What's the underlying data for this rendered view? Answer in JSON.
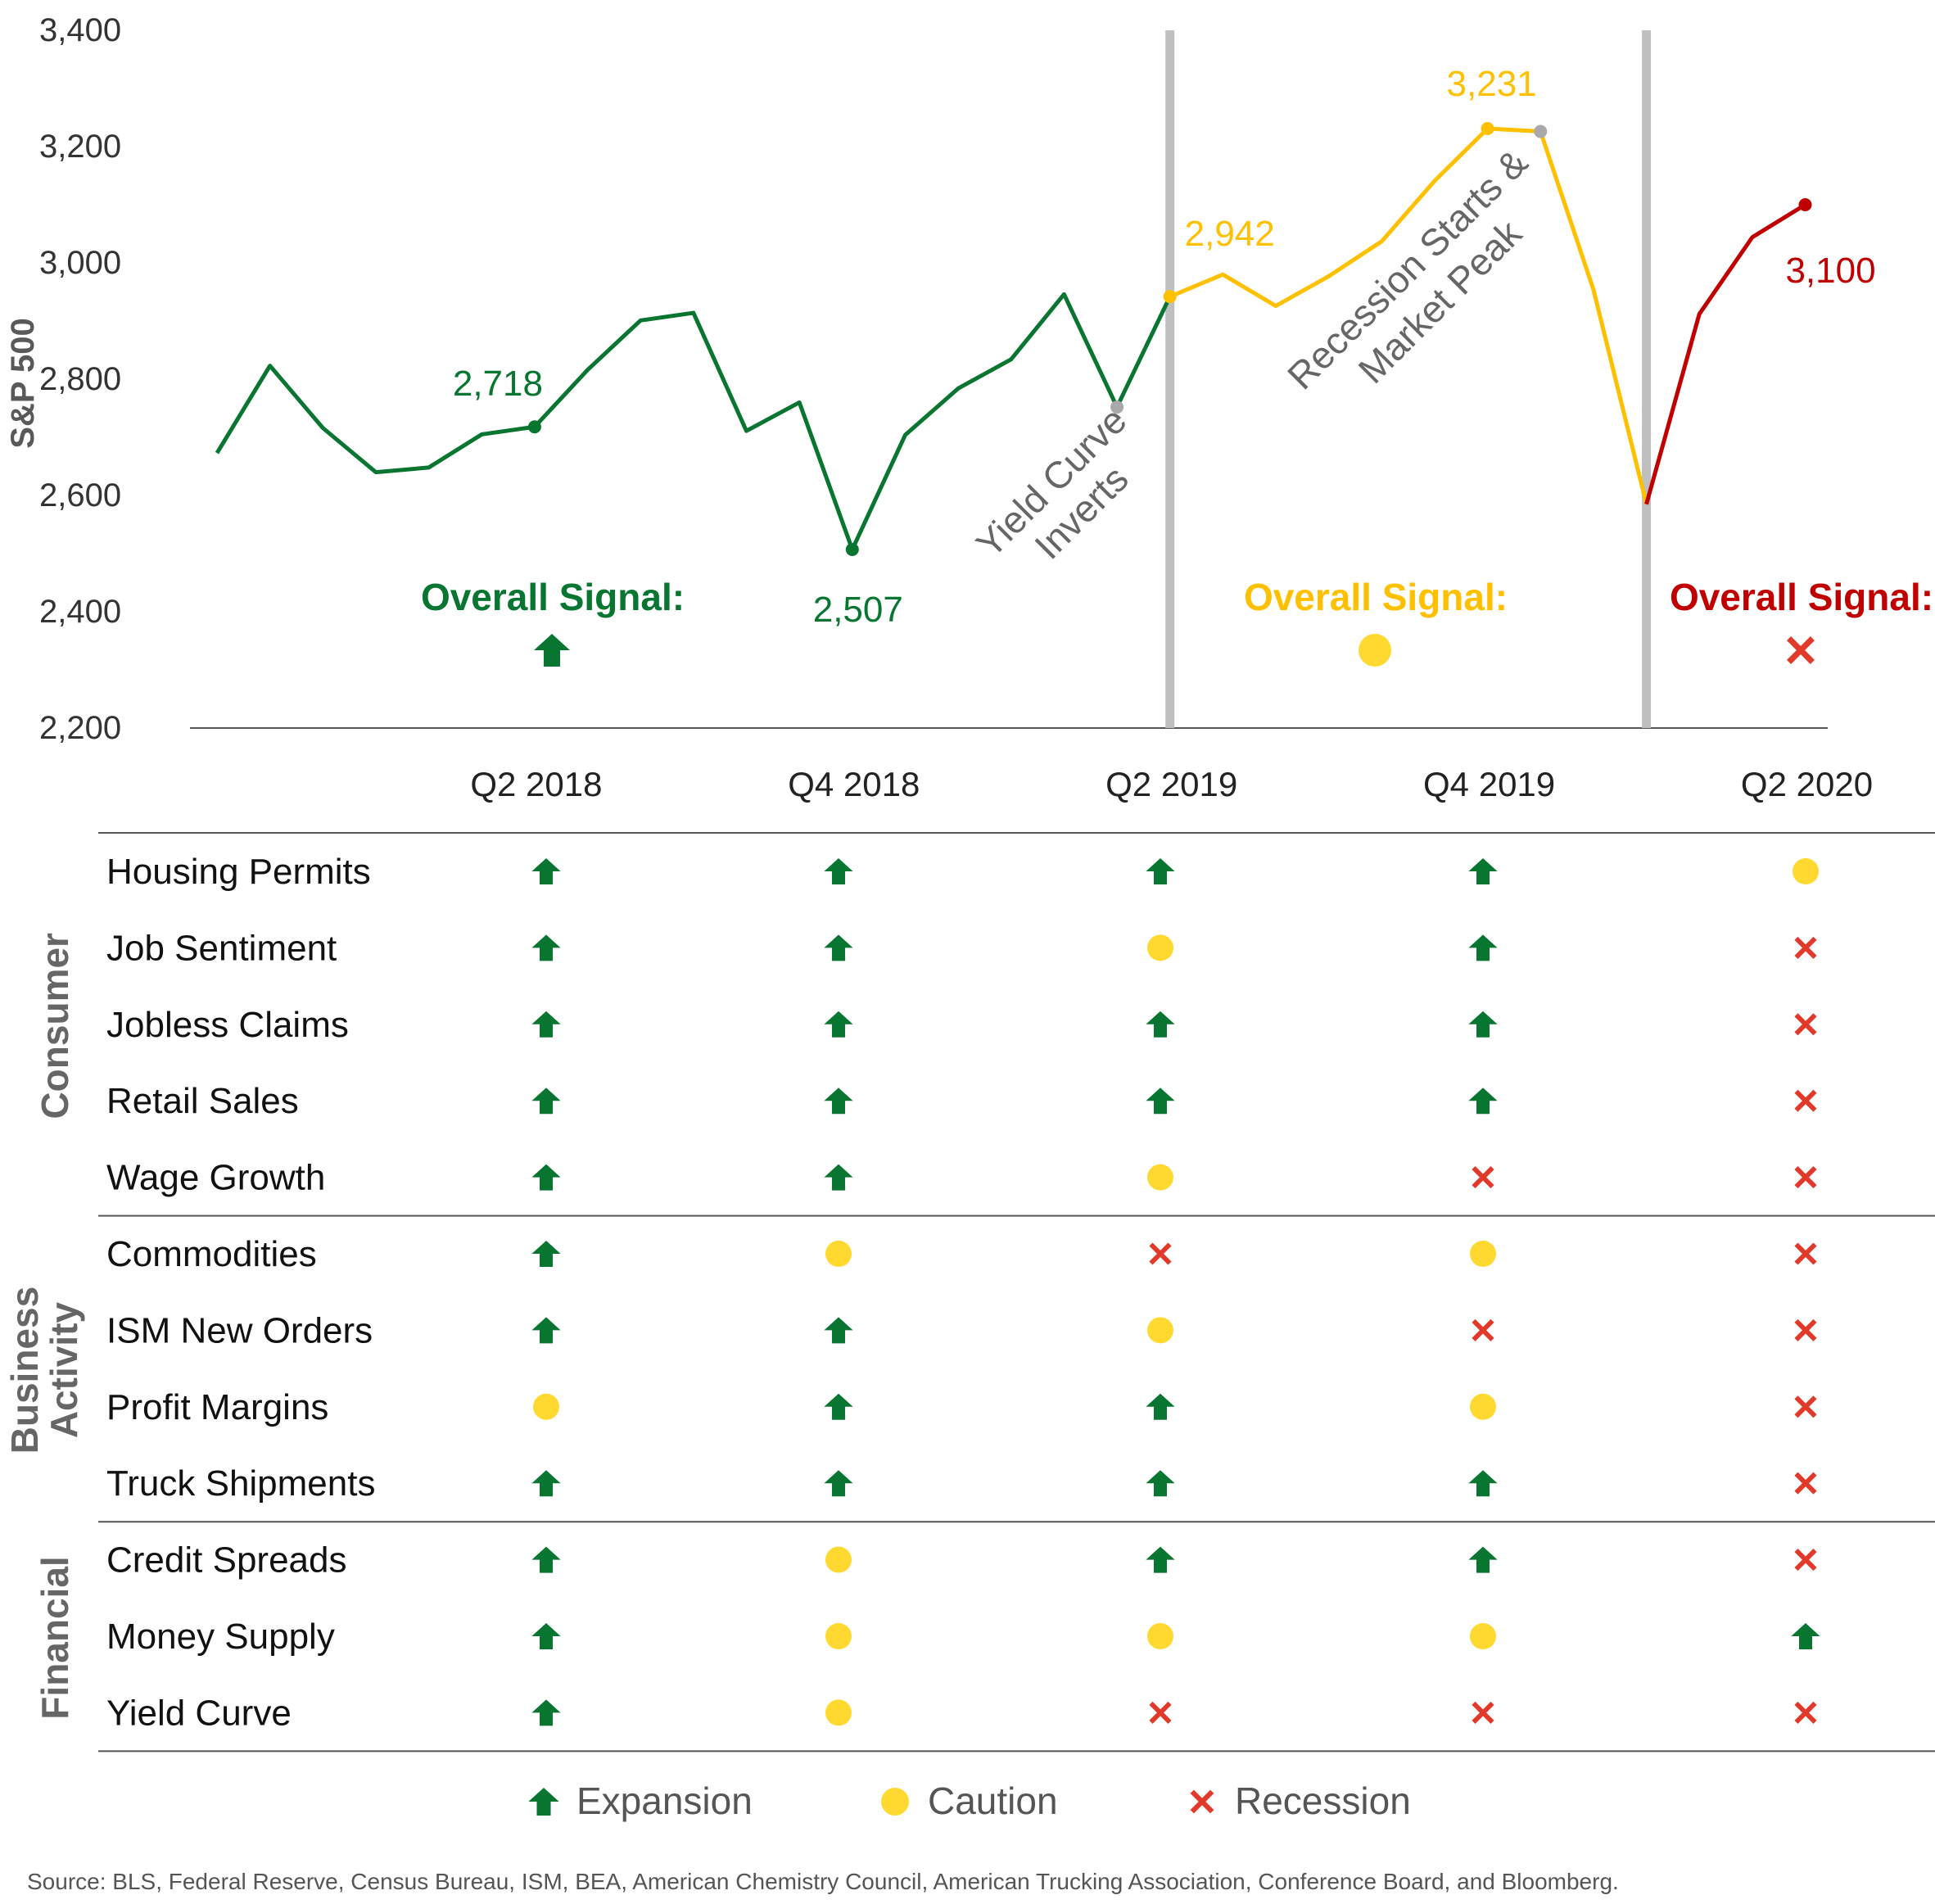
{
  "colors": {
    "expansion": "#087631",
    "caution": "#ffc000",
    "caution_fill": "#ffd92f",
    "recession": "#c00000",
    "recession_icon": "#e23a2a",
    "annotation": "#666666",
    "divider": "#bfbfbf",
    "axis_text": "#333333",
    "peak_dot": "#a9a9a9"
  },
  "chart_data": {
    "type": "line",
    "ylabel": "S&P 500",
    "ylim": [
      2200,
      3400
    ],
    "yticks": [
      "2,200",
      "2,400",
      "2,600",
      "2,800",
      "3,000",
      "3,200",
      "3,400"
    ],
    "ytick_values": [
      2200,
      2400,
      2600,
      2800,
      3000,
      3200,
      3400
    ],
    "xticks": [
      "Q2 2018",
      "Q4 2018",
      "Q2 2019",
      "Q4 2019",
      "Q2 2020"
    ],
    "xtick_index": [
      6,
      12,
      18,
      24,
      30
    ],
    "series": [
      {
        "phase": "expansion",
        "color_key": "expansion",
        "index": [
          0,
          1,
          2,
          3,
          4,
          5,
          6,
          7,
          8,
          9,
          10,
          11,
          12,
          13,
          14,
          15,
          16,
          17,
          18
        ],
        "values": [
          2673,
          2823,
          2716,
          2640,
          2648,
          2705,
          2718,
          2816,
          2901,
          2914,
          2711,
          2760,
          2507,
          2704,
          2784,
          2834,
          2946,
          2752,
          2942
        ]
      },
      {
        "phase": "caution",
        "color_key": "caution",
        "index": [
          18,
          19,
          20,
          21,
          22,
          23,
          24,
          25,
          26,
          27
        ],
        "values": [
          2942,
          2980,
          2926,
          2977,
          3037,
          3141,
          3231,
          3226,
          2954,
          2585
        ]
      },
      {
        "phase": "recession",
        "color_key": "recession",
        "index": [
          27,
          28,
          29,
          30
        ],
        "values": [
          2585,
          2912,
          3044,
          3100
        ]
      }
    ],
    "point_labels": [
      {
        "index": 6,
        "value": 2718,
        "text": "2,718",
        "color_key": "expansion",
        "marker": "expansion"
      },
      {
        "index": 12,
        "value": 2507,
        "text": "2,507",
        "color_key": "expansion",
        "marker": "expansion"
      },
      {
        "index": 18,
        "value": 2942,
        "text": "2,942",
        "color_key": "caution",
        "marker": "caution"
      },
      {
        "index": 24,
        "value": 3231,
        "text": "3,231",
        "color_key": "caution",
        "marker": "caution"
      },
      {
        "index": 30,
        "value": 3100,
        "text": "3,100",
        "color_key": "recession",
        "marker": "recession"
      }
    ],
    "event_markers": [
      {
        "index": 17,
        "value": 2752,
        "text_lines": [
          "Yield Curve",
          "Inverts"
        ]
      },
      {
        "index": 25,
        "value": 3226,
        "text_lines": [
          "Recession Starts &",
          "Market Peak"
        ]
      }
    ],
    "vertical_dividers_index": [
      18,
      27
    ],
    "signals": [
      {
        "label": "Overall Signal:",
        "icon": "expansion",
        "color_key": "expansion"
      },
      {
        "label": "Overall Signal:",
        "icon": "caution",
        "color_key": "caution"
      },
      {
        "label": "Overall Signal:",
        "icon": "recession",
        "color_key": "recession"
      }
    ]
  },
  "table": {
    "groups": [
      {
        "name": "Consumer",
        "lines": [
          "Consumer"
        ],
        "rows": [
          {
            "label": "Housing Permits",
            "signals": [
              "expansion",
              "expansion",
              "expansion",
              "expansion",
              "caution"
            ]
          },
          {
            "label": "Job Sentiment",
            "signals": [
              "expansion",
              "expansion",
              "caution",
              "expansion",
              "recession"
            ]
          },
          {
            "label": "Jobless Claims",
            "signals": [
              "expansion",
              "expansion",
              "expansion",
              "expansion",
              "recession"
            ]
          },
          {
            "label": "Retail Sales",
            "signals": [
              "expansion",
              "expansion",
              "expansion",
              "expansion",
              "recession"
            ]
          },
          {
            "label": "Wage Growth",
            "signals": [
              "expansion",
              "expansion",
              "caution",
              "recession",
              "recession"
            ]
          }
        ]
      },
      {
        "name": "Business Activity",
        "lines": [
          "Business",
          "Activity"
        ],
        "rows": [
          {
            "label": "Commodities",
            "signals": [
              "expansion",
              "caution",
              "recession",
              "caution",
              "recession"
            ]
          },
          {
            "label": "ISM New Orders",
            "signals": [
              "expansion",
              "expansion",
              "caution",
              "recession",
              "recession"
            ]
          },
          {
            "label": "Profit Margins",
            "signals": [
              "caution",
              "expansion",
              "expansion",
              "caution",
              "recession"
            ]
          },
          {
            "label": "Truck Shipments",
            "signals": [
              "expansion",
              "expansion",
              "expansion",
              "expansion",
              "recession"
            ]
          }
        ]
      },
      {
        "name": "Financial",
        "lines": [
          "Financial"
        ],
        "rows": [
          {
            "label": "Credit Spreads",
            "signals": [
              "expansion",
              "caution",
              "expansion",
              "expansion",
              "recession"
            ]
          },
          {
            "label": "Money Supply",
            "signals": [
              "expansion",
              "caution",
              "caution",
              "caution",
              "expansion"
            ]
          },
          {
            "label": "Yield Curve",
            "signals": [
              "expansion",
              "caution",
              "recession",
              "recession",
              "recession"
            ]
          }
        ]
      }
    ]
  },
  "legend": [
    {
      "icon": "expansion",
      "label": "Expansion"
    },
    {
      "icon": "caution",
      "label": "Caution"
    },
    {
      "icon": "recession",
      "label": "Recession"
    }
  ],
  "source": "Source: BLS, Federal Reserve, Census Bureau, ISM, BEA, American Chemistry Council, American Trucking Association, Conference Board, and Bloomberg."
}
